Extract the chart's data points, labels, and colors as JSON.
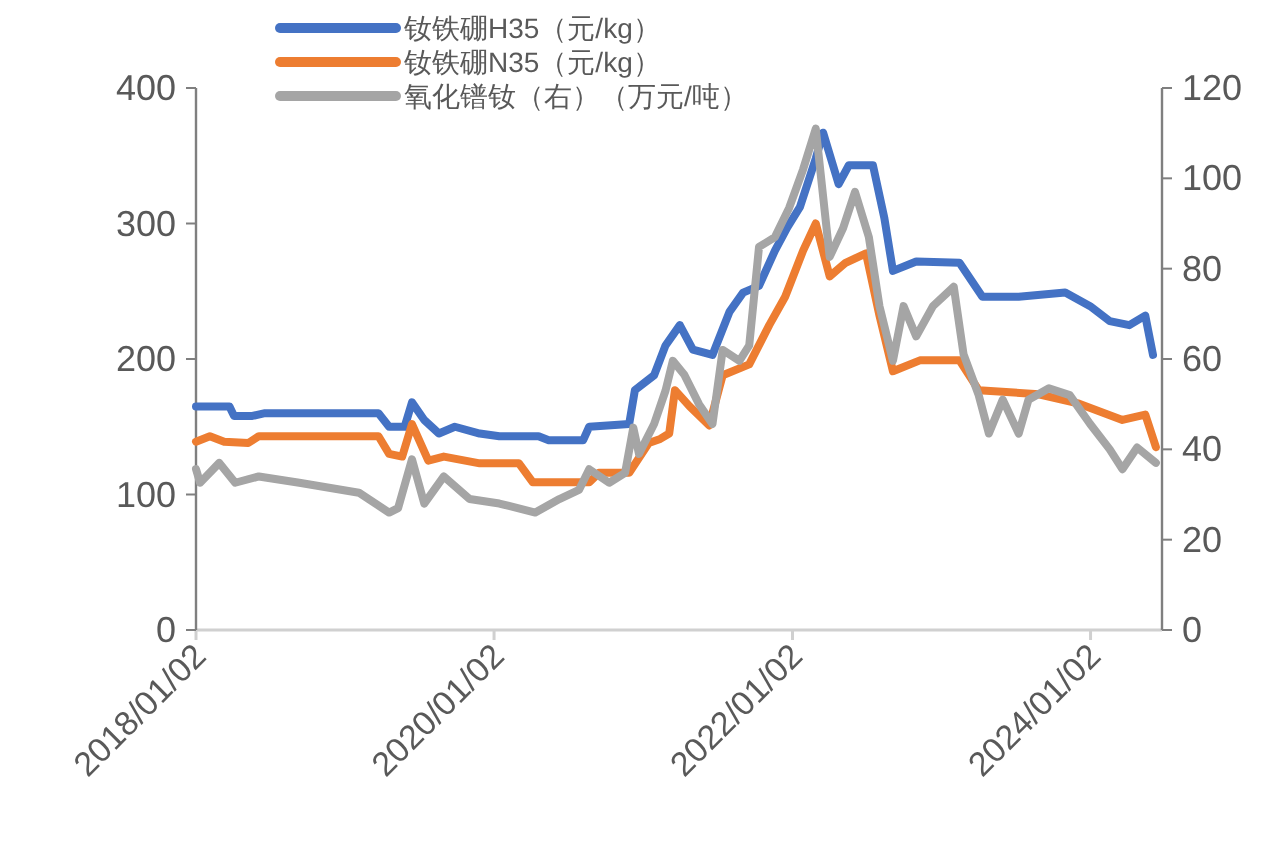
{
  "chart_data": {
    "type": "line",
    "legend": "top",
    "xlim": [
      "2018-01-02",
      "2024-06-25"
    ],
    "xticks": [
      {
        "value": "2018-01-02",
        "label": "2018/01/02"
      },
      {
        "value": "2020-01-02",
        "label": "2020/01/02"
      },
      {
        "value": "2022-01-02",
        "label": "2022/01/02"
      },
      {
        "value": "2024-01-02",
        "label": "2024/01/02"
      }
    ],
    "ylim": [
      0,
      400
    ],
    "yticks": [
      0,
      100,
      200,
      300,
      400
    ],
    "y2lim": [
      0,
      120
    ],
    "y2ticks": [
      0,
      20,
      40,
      60,
      80,
      100,
      120
    ],
    "series": [
      {
        "name": "钕铁硼H35（元/kg）",
        "color": "#4472c4",
        "x": [
          "2018-01-02",
          "2018-03-25",
          "2018-04-05",
          "2018-05-20",
          "2018-06-20",
          "2019-03-25",
          "2019-04-20",
          "2019-05-28",
          "2019-06-15",
          "2019-07-15",
          "2019-08-20",
          "2019-09-28",
          "2019-11-28",
          "2020-01-15",
          "2020-04-20",
          "2020-05-15",
          "2020-08-07",
          "2020-08-22",
          "2020-11-28",
          "2020-12-12",
          "2021-01-28",
          "2021-02-25",
          "2021-04-01",
          "2021-05-03",
          "2021-06-20",
          "2021-08-01",
          "2021-09-03",
          "2021-10-12",
          "2021-11-20",
          "2021-12-20",
          "2022-01-20",
          "2022-02-28",
          "2022-03-18",
          "2022-04-25",
          "2022-05-20",
          "2022-07-18",
          "2022-08-15",
          "2022-09-05",
          "2022-11-01",
          "2023-02-15",
          "2023-04-12",
          "2023-07-10",
          "2023-11-01",
          "2024-01-01",
          "2024-02-18",
          "2024-04-06",
          "2024-05-15",
          "2024-06-03"
        ],
        "values": [
          165,
          165,
          158,
          158,
          160,
          160,
          150,
          150,
          168,
          155,
          145,
          150,
          145,
          143,
          143,
          140,
          140,
          150,
          152,
          177,
          188,
          210,
          225,
          207,
          203,
          235,
          249,
          254,
          280,
          297,
          312,
          348,
          367,
          329,
          343,
          343,
          304,
          265,
          272,
          271,
          246,
          246,
          249,
          239,
          228,
          225,
          232,
          203
        ]
      },
      {
        "name": "钕铁硼N35（元/kg）",
        "color": "#ed7d31",
        "x": [
          "2018-01-02",
          "2018-02-05",
          "2018-03-12",
          "2018-05-10",
          "2018-06-05",
          "2019-03-25",
          "2019-04-20",
          "2019-05-22",
          "2019-06-15",
          "2019-07-25",
          "2019-09-01",
          "2019-11-28",
          "2020-03-03",
          "2020-04-06",
          "2020-08-22",
          "2020-09-15",
          "2020-11-28",
          "2021-01-15",
          "2021-02-12",
          "2021-03-06",
          "2021-03-20",
          "2021-04-25",
          "2021-06-12",
          "2021-07-15",
          "2021-09-18",
          "2021-11-06",
          "2021-12-15",
          "2022-01-28",
          "2022-02-28",
          "2022-04-03",
          "2022-05-12",
          "2022-07-01",
          "2022-08-03",
          "2022-09-05",
          "2022-11-10",
          "2023-02-15",
          "2023-04-03",
          "2023-08-28",
          "2023-12-05",
          "2024-03-20",
          "2024-05-15",
          "2024-06-10"
        ],
        "values": [
          139,
          143,
          139,
          138,
          143,
          143,
          130,
          128,
          152,
          125,
          128,
          123,
          123,
          109,
          109,
          116,
          116,
          138,
          141,
          145,
          177,
          165,
          151,
          188,
          196,
          225,
          246,
          280,
          300,
          261,
          271,
          278,
          232,
          191,
          199,
          199,
          177,
          174,
          167,
          155,
          159,
          135
        ]
      },
      {
        "name": "氧化镨钕（右）（万元/吨）",
        "color": "#a5a5a5",
        "axis": "y2",
        "x": [
          "2018-01-02",
          "2018-01-12",
          "2018-02-28",
          "2018-04-08",
          "2018-06-05",
          "2018-09-12",
          "2019-02-05",
          "2019-04-20",
          "2019-05-12",
          "2019-06-15",
          "2019-07-15",
          "2019-09-01",
          "2019-11-03",
          "2020-01-15",
          "2020-04-12",
          "2020-06-10",
          "2020-07-28",
          "2020-08-22",
          "2020-10-10",
          "2020-11-18",
          "2020-12-08",
          "2020-12-22",
          "2021-01-28",
          "2021-02-25",
          "2021-03-15",
          "2021-04-12",
          "2021-05-18",
          "2021-06-20",
          "2021-07-15",
          "2021-08-25",
          "2021-09-18",
          "2021-10-12",
          "2021-11-20",
          "2021-12-25",
          "2022-01-28",
          "2022-02-28",
          "2022-04-03",
          "2022-05-06",
          "2022-06-04",
          "2022-07-08",
          "2022-08-03",
          "2022-09-05",
          "2022-10-01",
          "2022-11-01",
          "2022-12-12",
          "2023-02-01",
          "2023-02-25",
          "2023-04-03",
          "2023-04-28",
          "2023-06-01",
          "2023-07-10",
          "2023-08-03",
          "2023-09-22",
          "2023-11-12",
          "2024-01-01",
          "2024-02-18",
          "2024-03-20",
          "2024-04-25",
          "2024-06-10"
        ],
        "values": [
          35.6,
          32.6,
          37,
          32.6,
          34,
          32.6,
          30.4,
          26,
          27,
          37.8,
          28,
          34,
          29,
          28,
          26,
          29,
          31,
          35.6,
          32.6,
          34.8,
          44.8,
          39,
          45.6,
          53,
          59.6,
          56.5,
          50,
          45.6,
          62,
          59.6,
          63,
          84.8,
          87,
          93.5,
          102,
          111,
          82.6,
          89,
          97,
          87,
          71.7,
          59.6,
          71.7,
          65,
          71.7,
          76,
          61,
          52,
          43.5,
          51,
          43.5,
          51,
          53.5,
          52,
          45.6,
          40,
          35.6,
          40.4,
          37
        ]
      }
    ]
  }
}
